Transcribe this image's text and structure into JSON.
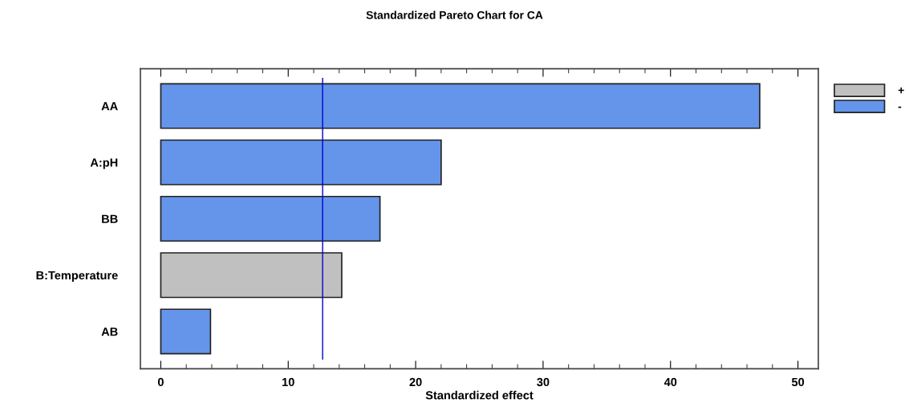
{
  "chart_data": {
    "type": "bar",
    "orientation": "horizontal",
    "title": "Standardized Pareto Chart for CA",
    "xlabel": "Standardized effect",
    "categories": [
      "AA",
      "A:pH",
      "BB",
      "B:Temperature",
      "AB"
    ],
    "series": [
      {
        "name": "+",
        "color": "#c0c0c0",
        "values": [
          null,
          null,
          null,
          14.2,
          null
        ]
      },
      {
        "name": "-",
        "color": "#6495ea",
        "values": [
          47.0,
          22.0,
          17.2,
          null,
          3.9
        ]
      }
    ],
    "xlim": [
      -1.6,
      51.6
    ],
    "xticks": [
      0,
      {
        "value": 2,
        "label": null
      },
      {
        "value": 4,
        "label": null
      },
      {
        "value": 6,
        "label": null
      },
      {
        "value": 8,
        "label": null
      },
      10,
      {
        "value": 12,
        "label": null
      },
      {
        "value": 14,
        "label": null
      },
      {
        "value": 16,
        "label": null
      },
      {
        "value": 18,
        "label": null
      },
      20,
      {
        "value": 22,
        "label": null
      },
      {
        "value": 24,
        "label": null
      },
      {
        "value": 26,
        "label": null
      },
      {
        "value": 28,
        "label": null
      },
      30,
      {
        "value": 32,
        "label": null
      },
      {
        "value": 34,
        "label": null
      },
      {
        "value": 36,
        "label": null
      },
      {
        "value": 38,
        "label": null
      },
      40,
      {
        "value": 42,
        "label": null
      },
      {
        "value": 44,
        "label": null
      },
      {
        "value": 46,
        "label": null
      },
      {
        "value": 48,
        "label": null
      },
      50
    ],
    "ref_lines": [
      {
        "axis": "x",
        "value": 12.7,
        "color": "#0000cc"
      }
    ],
    "grid": false,
    "legend": "top right"
  }
}
